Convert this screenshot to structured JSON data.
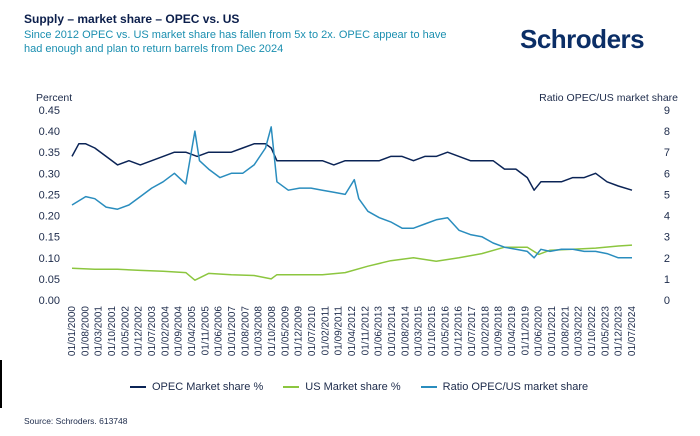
{
  "header": {
    "title": "Supply – market share – OPEC vs. US",
    "subtitle": "Since 2012 OPEC vs. US market share has fallen from 5x to 2x. OPEC appear to have had enough and plan to return barrels from Dec 2024",
    "logo": "Schroders"
  },
  "footer": {
    "source": "Source: Schroders. 613748"
  },
  "chart_data": {
    "type": "line",
    "title": "Supply – market share – OPEC vs. US",
    "ylabel": "Percent",
    "y2label": "Ratio OPEC/US market share",
    "ylim": [
      0,
      0.45
    ],
    "y2lim": [
      0,
      9
    ],
    "yticks": [
      "0.00",
      "0.05",
      "0.10",
      "0.15",
      "0.20",
      "0.25",
      "0.30",
      "0.35",
      "0.40",
      "0.45"
    ],
    "y2ticks": [
      "0",
      "1",
      "2",
      "3",
      "4",
      "5",
      "6",
      "7",
      "8",
      "9"
    ],
    "xticks": [
      "01/01/2000",
      "01/08/2000",
      "01/03/2001",
      "01/10/2001",
      "01/05/2002",
      "01/12/2002",
      "01/07/2003",
      "01/02/2004",
      "01/09/2004",
      "01/04/2005",
      "01/11/2005",
      "01/06/2006",
      "01/01/2007",
      "01/08/2007",
      "01/03/2008",
      "01/10/2008",
      "01/05/2009",
      "01/12/2009",
      "01/07/2010",
      "01/02/2011",
      "01/09/2011",
      "01/04/2012",
      "01/11/2012",
      "01/06/2013",
      "01/01/2014",
      "01/08/2014",
      "01/03/2015",
      "01/10/2015",
      "01/05/2016",
      "01/12/2016",
      "01/07/2017",
      "01/02/2018",
      "01/09/2018",
      "01/04/2019",
      "01/11/2019",
      "01/06/2020",
      "01/01/2021",
      "01/08/2021",
      "01/03/2022",
      "01/10/2022",
      "01/05/2023",
      "01/12/2023",
      "01/07/2024"
    ],
    "x_years": [
      2000,
      2024.6
    ],
    "grid": false,
    "legend_position": "bottom",
    "series": [
      {
        "name": "OPEC Market share %",
        "axis": "left",
        "color": "#0b2456",
        "x": [
          2000.0,
          2000.3,
          2000.6,
          2001.0,
          2001.5,
          2002.0,
          2002.5,
          2003.0,
          2003.5,
          2004.0,
          2004.5,
          2005.0,
          2005.5,
          2006.0,
          2006.5,
          2007.0,
          2007.5,
          2008.0,
          2008.5,
          2008.75,
          2009.0,
          2009.5,
          2010.0,
          2010.5,
          2011.0,
          2011.5,
          2012.0,
          2012.5,
          2013.0,
          2013.5,
          2014.0,
          2014.5,
          2015.0,
          2015.5,
          2016.0,
          2016.5,
          2017.0,
          2017.5,
          2018.0,
          2018.5,
          2019.0,
          2019.5,
          2020.0,
          2020.3,
          2020.6,
          2021.0,
          2021.5,
          2022.0,
          2022.5,
          2023.0,
          2023.5,
          2024.0,
          2024.6
        ],
        "values": [
          0.34,
          0.37,
          0.37,
          0.36,
          0.34,
          0.32,
          0.33,
          0.32,
          0.33,
          0.34,
          0.35,
          0.35,
          0.34,
          0.35,
          0.35,
          0.35,
          0.36,
          0.37,
          0.37,
          0.36,
          0.33,
          0.33,
          0.33,
          0.33,
          0.33,
          0.32,
          0.33,
          0.33,
          0.33,
          0.33,
          0.34,
          0.34,
          0.33,
          0.34,
          0.34,
          0.35,
          0.34,
          0.33,
          0.33,
          0.33,
          0.31,
          0.31,
          0.29,
          0.26,
          0.28,
          0.28,
          0.28,
          0.29,
          0.29,
          0.3,
          0.28,
          0.27,
          0.26
        ]
      },
      {
        "name": "US Market share %",
        "axis": "left",
        "color": "#8cc63f",
        "x": [
          2000.0,
          2001.0,
          2002.0,
          2003.0,
          2004.0,
          2005.0,
          2005.4,
          2006.0,
          2007.0,
          2008.0,
          2008.75,
          2009.0,
          2010.0,
          2011.0,
          2012.0,
          2013.0,
          2014.0,
          2015.0,
          2016.0,
          2017.0,
          2018.0,
          2019.0,
          2020.0,
          2020.5,
          2021.0,
          2022.0,
          2023.0,
          2024.0,
          2024.6
        ],
        "values": [
          0.075,
          0.073,
          0.073,
          0.07,
          0.068,
          0.065,
          0.047,
          0.063,
          0.06,
          0.058,
          0.05,
          0.06,
          0.06,
          0.06,
          0.065,
          0.08,
          0.093,
          0.1,
          0.092,
          0.1,
          0.11,
          0.125,
          0.125,
          0.108,
          0.118,
          0.12,
          0.123,
          0.128,
          0.13
        ]
      },
      {
        "name": "Ratio OPEC/US market share",
        "axis": "right",
        "color": "#2a8dbe",
        "x": [
          2000.0,
          2000.6,
          2001.0,
          2001.5,
          2002.0,
          2002.5,
          2003.0,
          2003.5,
          2004.0,
          2004.5,
          2005.0,
          2005.4,
          2005.6,
          2006.0,
          2006.5,
          2007.0,
          2007.5,
          2008.0,
          2008.5,
          2008.75,
          2009.0,
          2009.5,
          2010.0,
          2010.5,
          2011.0,
          2011.5,
          2012.0,
          2012.4,
          2012.6,
          2013.0,
          2013.5,
          2014.0,
          2014.5,
          2015.0,
          2015.5,
          2016.0,
          2016.5,
          2017.0,
          2017.5,
          2018.0,
          2018.5,
          2019.0,
          2019.5,
          2020.0,
          2020.3,
          2020.6,
          2021.0,
          2021.5,
          2022.0,
          2022.5,
          2023.0,
          2023.5,
          2024.0,
          2024.6
        ],
        "values": [
          4.5,
          4.9,
          4.8,
          4.4,
          4.3,
          4.5,
          4.9,
          5.3,
          5.6,
          6.0,
          5.5,
          8.0,
          6.6,
          6.2,
          5.8,
          6.0,
          6.0,
          6.4,
          7.2,
          8.2,
          5.6,
          5.2,
          5.3,
          5.3,
          5.2,
          5.1,
          5.0,
          5.7,
          4.8,
          4.2,
          3.9,
          3.7,
          3.4,
          3.4,
          3.6,
          3.8,
          3.9,
          3.3,
          3.1,
          3.0,
          2.7,
          2.5,
          2.4,
          2.3,
          2.0,
          2.4,
          2.3,
          2.4,
          2.4,
          2.3,
          2.3,
          2.2,
          2.0,
          2.0
        ]
      }
    ]
  }
}
